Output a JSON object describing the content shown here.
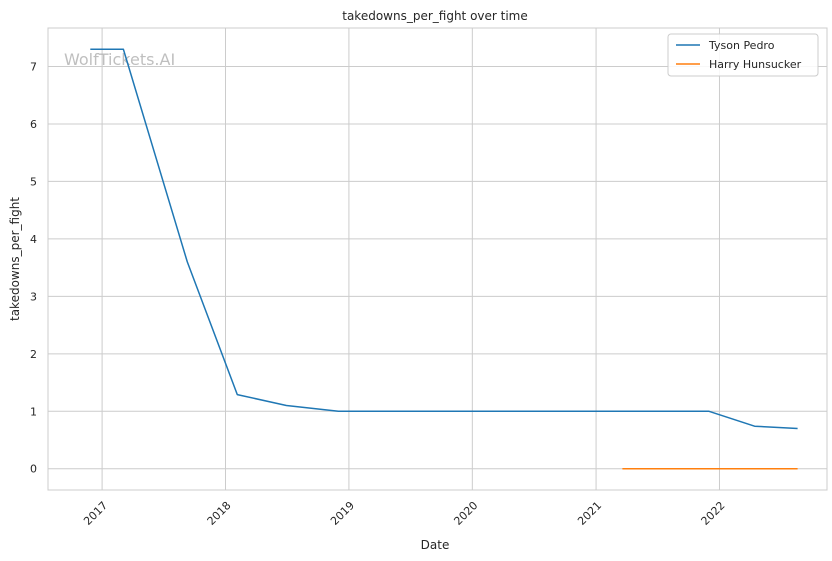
{
  "chart_data": {
    "type": "line",
    "title": "takedowns_per_fight over time",
    "xlabel": "Date",
    "ylabel": "takedowns_per_fight",
    "watermark": "WolfTickets.AI",
    "x_ticks": [
      "2017",
      "2018",
      "2019",
      "2020",
      "2021",
      "2022"
    ],
    "y_ticks": [
      0,
      1,
      2,
      3,
      4,
      5,
      6,
      7
    ],
    "xlim": [
      "2016-07-25",
      "2022-11-15"
    ],
    "ylim": [
      -0.37,
      7.67
    ],
    "grid": true,
    "legend_position": "top-right",
    "series": [
      {
        "name": "Tyson Pedro",
        "color": "#1f77b4",
        "points": [
          {
            "x": "2016-11-27",
            "y": 7.3
          },
          {
            "x": "2017-03-05",
            "y": 7.3
          },
          {
            "x": "2017-09-10",
            "y": 3.6
          },
          {
            "x": "2018-02-05",
            "y": 1.29
          },
          {
            "x": "2018-06-30",
            "y": 1.1
          },
          {
            "x": "2018-12-01",
            "y": 1.0
          },
          {
            "x": "2021-12-01",
            "y": 1.0
          },
          {
            "x": "2022-04-15",
            "y": 0.74
          },
          {
            "x": "2022-08-20",
            "y": 0.7
          }
        ]
      },
      {
        "name": "Harry Hunsucker",
        "color": "#ff7f0e",
        "points": [
          {
            "x": "2021-03-20",
            "y": 0.0
          },
          {
            "x": "2022-08-20",
            "y": 0.0
          }
        ]
      }
    ]
  }
}
